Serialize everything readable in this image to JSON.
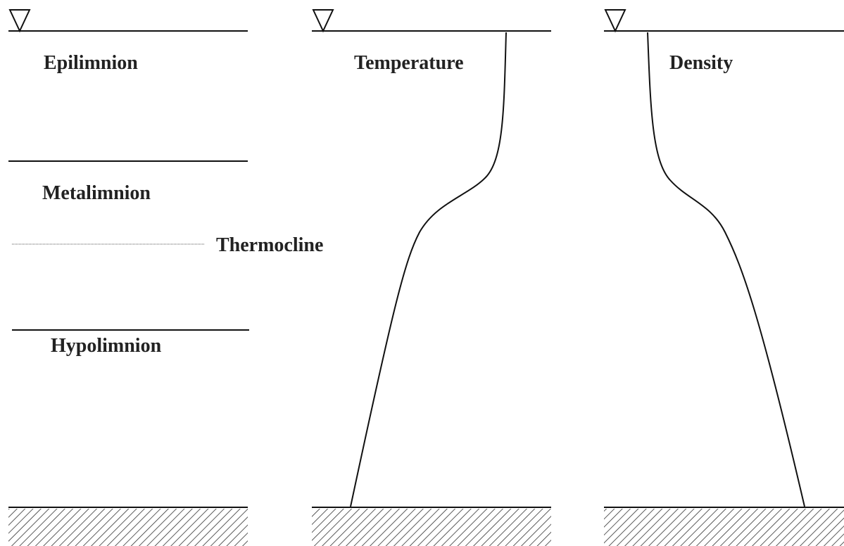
{
  "layers": [
    "Epilimnion",
    "Metalimnion",
    "Thermocline",
    "Hypolimnion"
  ],
  "profiles": [
    "Temperature",
    "Density"
  ]
}
